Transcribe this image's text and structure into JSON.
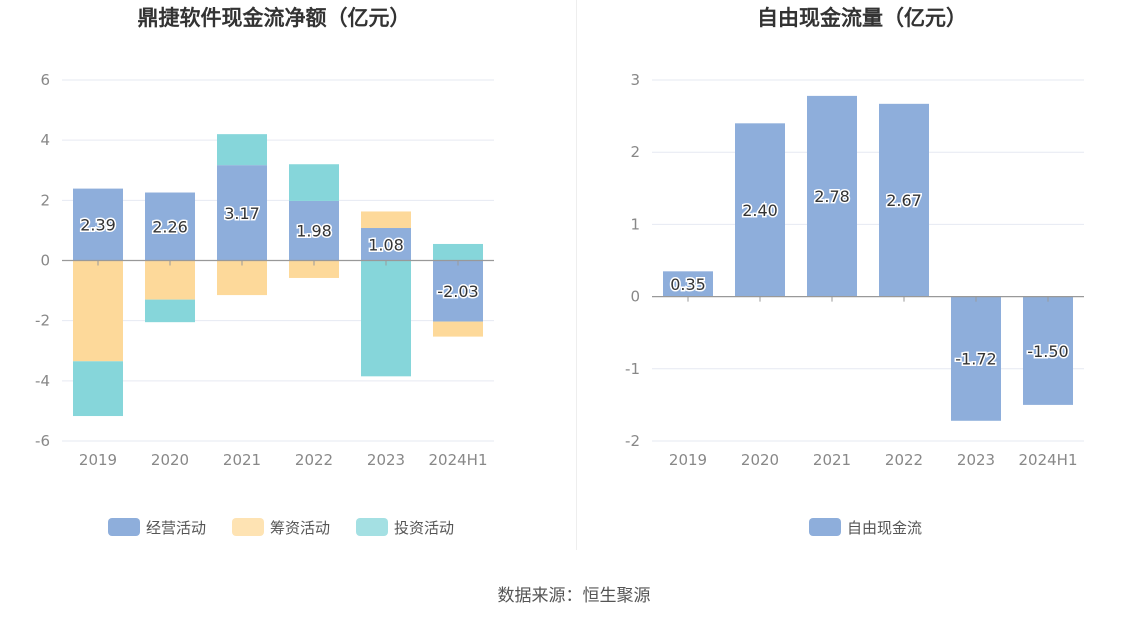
{
  "source": "数据来源：恒生聚源",
  "colors": {
    "operating": "#8eaedb",
    "financing": "#fdd99a",
    "investing": "#86d6da",
    "freecash": "#8eaedb",
    "grid": "#e6e9f2",
    "axis": "#999999",
    "tick": "#888888",
    "title": "#333333"
  },
  "chart_data": [
    {
      "type": "bar",
      "stacked": true,
      "title": "鼎捷软件现金流净额（亿元）",
      "categories": [
        "2019",
        "2020",
        "2021",
        "2022",
        "2023",
        "2024H1"
      ],
      "ylim": [
        -6,
        6
      ],
      "yticks": [
        "6",
        "4",
        "2",
        "0",
        "-2",
        "-4",
        "-6"
      ],
      "grid": true,
      "legend": "bottom",
      "series": [
        {
          "name": "经营活动",
          "values": [
            2.39,
            2.26,
            3.17,
            1.98,
            1.08,
            -2.03
          ],
          "labels": [
            "2.39",
            "2.26",
            "3.17",
            "1.98",
            "1.08",
            "-2.03"
          ]
        },
        {
          "name": "筹资活动",
          "values": [
            -3.35,
            -1.3,
            -1.15,
            -0.58,
            0.55,
            -0.5
          ]
        },
        {
          "name": "投资活动",
          "values": [
            -1.82,
            -0.75,
            1.03,
            1.22,
            -3.85,
            0.55
          ]
        }
      ]
    },
    {
      "type": "bar",
      "title": "自由现金流量（亿元）",
      "categories": [
        "2019",
        "2020",
        "2021",
        "2022",
        "2023",
        "2024H1"
      ],
      "ylim": [
        -2,
        3
      ],
      "yticks": [
        "3",
        "2",
        "1",
        "0",
        "-1",
        "-2"
      ],
      "grid": true,
      "legend": "bottom",
      "series": [
        {
          "name": "自由现金流",
          "values": [
            0.35,
            2.4,
            2.78,
            2.67,
            -1.72,
            -1.5
          ],
          "labels": [
            "0.35",
            "2.40",
            "2.78",
            "2.67",
            "-1.72",
            "-1.50"
          ]
        }
      ]
    }
  ]
}
